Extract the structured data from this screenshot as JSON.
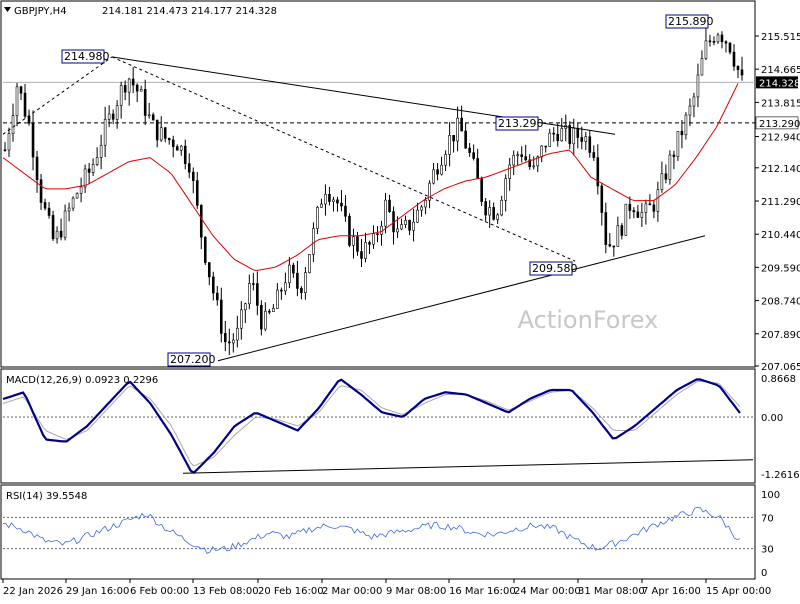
{
  "header": {
    "symbol": "GBPJPY,H4",
    "ohlc": "214.181 214.473 214.177 214.328"
  },
  "watermark": "ActionForex",
  "chart_data": [
    {
      "type": "candlestick",
      "panel": "price",
      "y_ticks": [
        "215.515",
        "214.665",
        "213.815",
        "212.940",
        "212.140",
        "211.290",
        "210.440",
        "209.590",
        "208.740",
        "207.890",
        "207.065"
      ],
      "ylim": [
        207.065,
        215.93
      ],
      "price_tags": [
        {
          "label": "214.328",
          "value": 214.328,
          "style": "current"
        },
        {
          "label": "213.290",
          "value": 213.29,
          "style": "dashed-level"
        }
      ],
      "annotations": [
        {
          "label": "214.980",
          "value": 214.98
        },
        {
          "label": "215.890",
          "value": 215.89
        },
        {
          "label": "213.290",
          "value": 213.29
        },
        {
          "label": "209.580",
          "value": 209.58
        },
        {
          "label": "207.200",
          "value": 207.2
        }
      ],
      "close_path": [
        212.6,
        214.3,
        213.2,
        211.3,
        210.2,
        210.9,
        211.6,
        212.1,
        213.0,
        213.8,
        214.5,
        214.0,
        213.2,
        212.9,
        212.8,
        212.3,
        210.4,
        208.9,
        207.6,
        207.9,
        209.3,
        208.1,
        208.6,
        209.5,
        209.0,
        210.3,
        211.7,
        211.3,
        210.4,
        210.0,
        210.2,
        211.2,
        210.4,
        210.7,
        211.2,
        212.1,
        212.8,
        213.2,
        212.3,
        211.2,
        211.0,
        212.2,
        212.6,
        212.0,
        212.8,
        213.1,
        212.9,
        213.0,
        212.6,
        210.1,
        210.5,
        211.3,
        210.9,
        211.3,
        212.2,
        213.0,
        213.8,
        215.2,
        215.7,
        215.3,
        214.328
      ],
      "ma_path": [
        212.4,
        212.0,
        211.6,
        211.6,
        211.7,
        212.0,
        212.3,
        212.4,
        212.0,
        211.2,
        210.4,
        209.8,
        209.5,
        209.6,
        209.9,
        210.3,
        210.4,
        210.4,
        210.5,
        210.9,
        211.3,
        211.6,
        211.8,
        211.9,
        212.1,
        212.3,
        212.5,
        212.6,
        211.9,
        211.6,
        211.3,
        211.3,
        211.7,
        212.4,
        213.2,
        214.3
      ]
    },
    {
      "type": "line",
      "panel": "macd",
      "label": "MACD(12,26,9) 0.0923 0.2296",
      "y_ticks": [
        "0.8668",
        "0.00",
        "-1.2616"
      ],
      "ylim": [
        -1.5,
        1.1
      ],
      "macd": [
        0.4,
        0.55,
        -0.5,
        -0.55,
        -0.2,
        0.3,
        0.8,
        0.3,
        -0.4,
        -1.27,
        -0.8,
        -0.2,
        0.1,
        -0.1,
        -0.3,
        0.2,
        0.85,
        0.5,
        0.1,
        0.0,
        0.4,
        0.55,
        0.5,
        0.3,
        0.1,
        0.4,
        0.6,
        0.6,
        0.1,
        -0.5,
        -0.2,
        0.2,
        0.6,
        0.85,
        0.7,
        0.09
      ],
      "signal": [
        0.3,
        0.45,
        -0.3,
        -0.5,
        -0.3,
        0.2,
        0.7,
        0.4,
        -0.2,
        -1.1,
        -0.9,
        -0.4,
        0.0,
        -0.05,
        -0.2,
        0.1,
        0.7,
        0.6,
        0.2,
        0.05,
        0.3,
        0.5,
        0.5,
        0.35,
        0.15,
        0.35,
        0.55,
        0.6,
        0.2,
        -0.3,
        -0.3,
        0.1,
        0.5,
        0.8,
        0.75,
        0.23
      ]
    },
    {
      "type": "line",
      "panel": "rsi",
      "label": "RSI(14) 39.5548",
      "y_ticks": [
        "100",
        "70",
        "30",
        "0"
      ],
      "ylim": [
        0,
        100
      ],
      "rsi": [
        62,
        55,
        40,
        35,
        45,
        55,
        65,
        75,
        55,
        40,
        28,
        30,
        40,
        50,
        45,
        55,
        60,
        55,
        45,
        50,
        55,
        60,
        58,
        50,
        48,
        55,
        60,
        55,
        40,
        30,
        38,
        50,
        62,
        72,
        80,
        70,
        39.55
      ]
    }
  ],
  "x_axis_labels": [
    "22 Jan 2026",
    "29 Jan 16:00",
    "6 Feb 00:00",
    "13 Feb 08:00",
    "20 Feb 16:00",
    "2 Mar 00:00",
    "9 Mar 08:00",
    "16 Mar 16:00",
    "24 Mar 00:00",
    "31 Mar 08:00",
    "7 Apr 16:00",
    "15 Apr 00:00"
  ],
  "colors": {
    "candles": "#000000",
    "ma": "#e00000",
    "macd": "#00008b",
    "signal": "#a9a9a9",
    "rsi": "#4169e1",
    "border": "#000000",
    "watermark": "#c8c8c8",
    "current_tag_bg": "#000000",
    "current_tag_fg": "#ffffff",
    "annotation_border": "#00008b"
  }
}
